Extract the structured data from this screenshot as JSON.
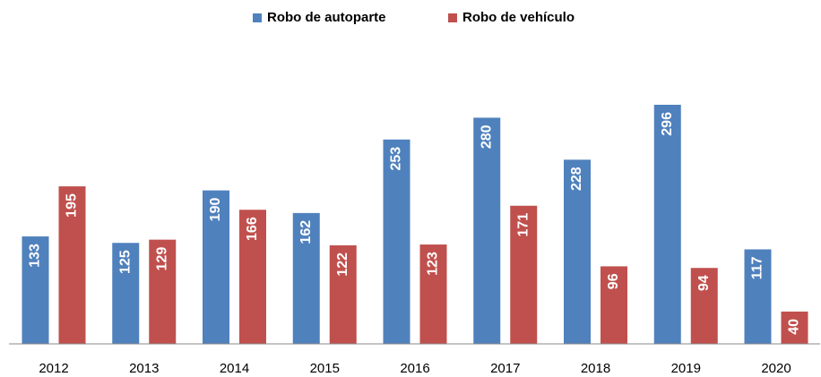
{
  "chart_data": {
    "type": "bar",
    "categories": [
      "2012",
      "2013",
      "2014",
      "2015",
      "2016",
      "2017",
      "2018",
      "2019",
      "2020"
    ],
    "series": [
      {
        "name": "Robo de autoparte",
        "color": "#4f81bd",
        "values": [
          133,
          125,
          190,
          162,
          253,
          280,
          228,
          296,
          117
        ]
      },
      {
        "name": "Robo de vehículo",
        "color": "#c0504d",
        "values": [
          195,
          129,
          166,
          122,
          123,
          171,
          96,
          94,
          40
        ]
      }
    ],
    "legend": "top"
  }
}
